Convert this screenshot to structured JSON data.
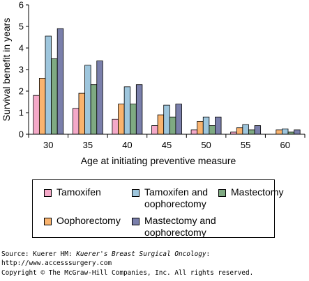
{
  "chart_data": {
    "type": "bar",
    "title": "",
    "xlabel": "Age at initiating preventive measure",
    "ylabel": "Survival benefit in years",
    "ylim": [
      0,
      6
    ],
    "yticks": [
      "0",
      "1",
      "2",
      "3",
      "4",
      "5",
      "6"
    ],
    "categories": [
      "30",
      "35",
      "40",
      "45",
      "50",
      "55",
      "60"
    ],
    "grid": false,
    "legend_position": "bottom",
    "series": [
      {
        "name": "Tamoxifen",
        "color": "#f4a9c8",
        "values": [
          1.8,
          1.2,
          0.7,
          0.4,
          0.2,
          0.1,
          0.0
        ]
      },
      {
        "name": "Oophorectomy",
        "color": "#f9b36e",
        "values": [
          2.6,
          1.9,
          1.4,
          0.9,
          0.6,
          0.3,
          0.2
        ]
      },
      {
        "name": "Tamoxifen and\noophorectomy",
        "color": "#9ec6dd",
        "values": [
          4.55,
          3.2,
          2.2,
          1.35,
          0.8,
          0.45,
          0.25
        ]
      },
      {
        "name": "Mastectomy",
        "color": "#7faa82",
        "values": [
          3.5,
          2.3,
          1.4,
          0.8,
          0.4,
          0.2,
          0.1
        ]
      },
      {
        "name": "Mastectomy and\noophorectomy",
        "color": "#7a7fab",
        "values": [
          4.9,
          3.4,
          2.3,
          1.4,
          0.8,
          0.4,
          0.2
        ]
      }
    ]
  },
  "source": {
    "prefix": "Source: Kuerer HM: ",
    "book": "Kuerer's Breast Surgical Oncology",
    "suffix": ":",
    "url": "http://www.accesssurgery.com",
    "copyright": "Copyright © The McGraw-Hill Companies, Inc. All rights reserved."
  }
}
